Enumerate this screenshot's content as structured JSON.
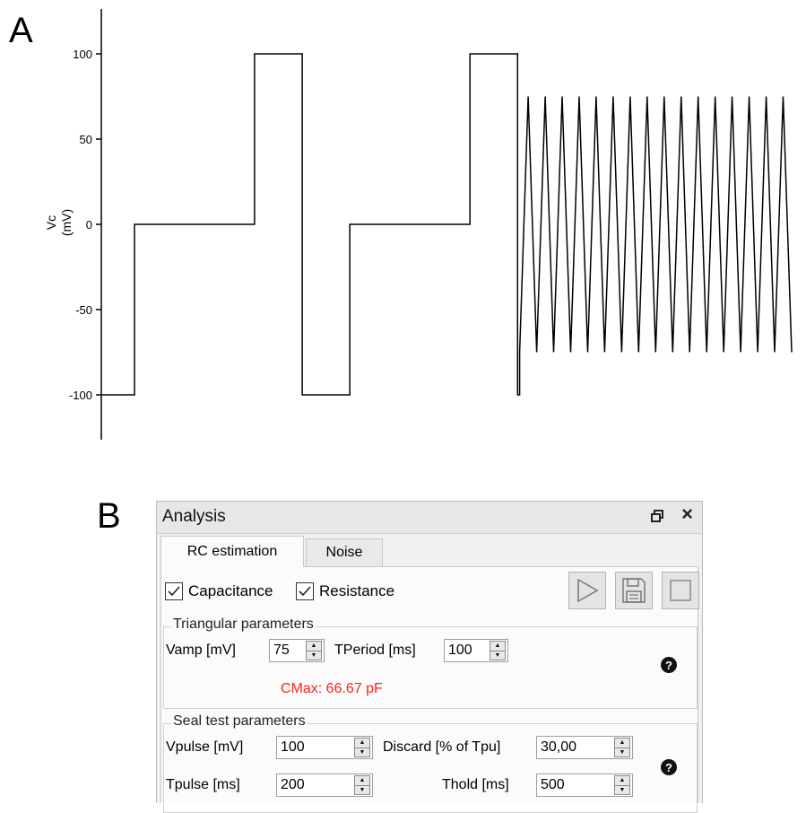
{
  "panels": {
    "a_label": "A",
    "b_label": "B"
  },
  "chart_data": {
    "type": "line",
    "title": "",
    "ylabel_line1": "Vc",
    "ylabel_line2": "(mV)",
    "xlabel": "",
    "ylim": [
      -125,
      125
    ],
    "yticks": [
      100,
      50,
      0,
      -50,
      -100
    ],
    "ytick_labels": [
      "100",
      "50",
      "0",
      "-50",
      "-100"
    ],
    "xlim": [
      0,
      1000
    ],
    "grid": false,
    "series": [
      {
        "steps": [
          {
            "x": [
              0,
              48
            ],
            "y": -100
          },
          {
            "x": [
              48,
              222
            ],
            "y": 0
          },
          {
            "x": [
              222,
              291
            ],
            "y": 100
          },
          {
            "x": [
              291,
              360
            ],
            "y": -100
          },
          {
            "x": [
              360,
              534
            ],
            "y": 0
          },
          {
            "x": [
              534,
              603
            ],
            "y": 100
          },
          {
            "x": [
              603,
              606
            ],
            "y": -100
          }
        ],
        "triangle": {
          "x_start": 606,
          "x_end": 1000,
          "cycles": 16,
          "amplitude": 75
        }
      }
    ]
  },
  "dock": {
    "title": "Analysis",
    "tabs": [
      {
        "label": "RC estimation",
        "active": true
      },
      {
        "label": "Noise",
        "active": false
      }
    ],
    "checks": [
      {
        "label": "Capacitance",
        "checked": true
      },
      {
        "label": "Resistance",
        "checked": true
      }
    ],
    "triangular": {
      "title": "Triangular parameters",
      "vamp_label": "Vamp [mV]",
      "vamp_value": "75",
      "tperiod_label": "TPeriod [ms]",
      "tperiod_value": "100",
      "cmax": "CMax: 66.67 pF"
    },
    "seal": {
      "title": "Seal test parameters",
      "vpulse_label": "Vpulse [mV]",
      "vpulse_value": "100",
      "discard_label": "Discard [% of Tpu]",
      "discard_value": "30,00",
      "tpulse_label": "Tpulse [ms]",
      "tpulse_value": "200",
      "thold_label": "Thold [ms]",
      "thold_value": "500"
    },
    "help_glyph": "?",
    "close_glyph": "×",
    "icons": [
      "float-icon",
      "close-icon",
      "play-icon",
      "save-icon",
      "stop-icon",
      "help-icon"
    ]
  }
}
